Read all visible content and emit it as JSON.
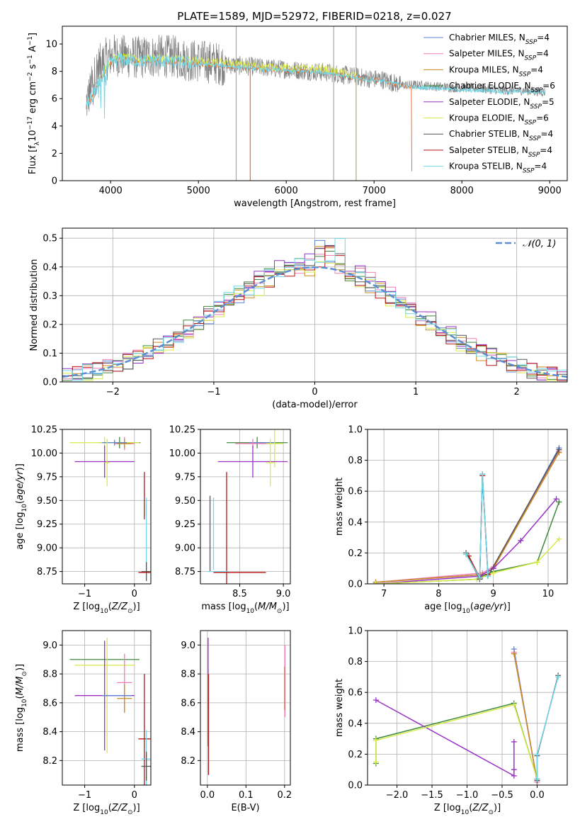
{
  "figure_title": "PLATE=1589, MJD=52972, FIBERID=0218, z=0.027",
  "colors": {
    "Chabrier MILES": "#5b83d6",
    "Salpeter MILES": "#ef7fb5",
    "Kroupa MILES": "#c98b1f",
    "Chabrier ELODIE": "#3f8a3f",
    "Salpeter ELODIE": "#9b30c7",
    "Kroupa ELODIE": "#d9ea4a",
    "Chabrier STELIB": "#555555",
    "Salpeter STELIB": "#b81414",
    "Kroupa STELIB": "#72d7e8",
    "orange_curve": "#e8733a",
    "gray_spectrum": "#808080",
    "normal_curve": "#5b8fd1",
    "grid": "#b0b0b0"
  },
  "chart_data": [
    {
      "id": "spectrum",
      "type": "line",
      "title": "PLATE=1589, MJD=52972, FIBERID=0218, z=0.027",
      "xlabel": "wavelength [Angstrom, rest frame]",
      "ylabel": "Flux [f_λ 10^-17 erg cm^-2 s^-1 A^-1]",
      "xlim": [
        3450,
        9200
      ],
      "ylim": [
        0,
        11.3
      ],
      "xticks": [
        4000,
        5000,
        6000,
        7000,
        8000,
        9000
      ],
      "yticks": [
        0,
        2,
        4,
        6,
        8,
        10
      ],
      "grid": false,
      "legend_position": "top-right",
      "legend": [
        {
          "base": "Chabrier MILES, N",
          "sub": "SSP",
          "tail": "=4"
        },
        {
          "base": "Salpeter MILES, N",
          "sub": "SSP",
          "tail": "=4"
        },
        {
          "base": "Kroupa MILES, N",
          "sub": "SSP",
          "tail": "=4"
        },
        {
          "base": "Chabrier ELODIE, N",
          "sub": "SSP",
          "tail": "=6"
        },
        {
          "base": "Salpeter ELODIE, N",
          "sub": "SSP",
          "tail": "=5"
        },
        {
          "base": "Kroupa ELODIE, N",
          "sub": "SSP",
          "tail": "=6"
        },
        {
          "base": "Chabrier STELIB, N",
          "sub": "SSP",
          "tail": "=4"
        },
        {
          "base": "Salpeter STELIB, N",
          "sub": "SSP",
          "tail": "=4"
        },
        {
          "base": "Kroupa STELIB, N",
          "sub": "SSP",
          "tail": "=4"
        }
      ],
      "data_gray_observed": {
        "x": [
          3720,
          3780,
          3850,
          3950,
          4050,
          4150,
          4300,
          4500,
          4700,
          4900,
          5100,
          5300,
          5500,
          5700,
          5900,
          6100,
          6300,
          6500,
          6700,
          6900,
          7100,
          7300,
          7500,
          7700,
          7900,
          8100,
          8300,
          8500,
          8700,
          8900
        ],
        "y": [
          5.6,
          6.8,
          8.3,
          8.9,
          9.2,
          9.1,
          9.0,
          9.1,
          9.1,
          8.8,
          8.7,
          8.5,
          8.4,
          8.3,
          8.2,
          8.1,
          8.0,
          7.9,
          7.7,
          7.5,
          7.4,
          7.0,
          7.0,
          6.9,
          6.8,
          6.8,
          6.7,
          6.6,
          6.6,
          6.5
        ]
      },
      "model_cyan": {
        "x": [
          3720,
          3800,
          3900,
          4000,
          4100,
          4200,
          4350,
          4500,
          4700,
          4900,
          5100,
          5300,
          5500,
          5700,
          5900,
          6100,
          6300,
          6500,
          6700,
          6900,
          7100,
          7300,
          7500,
          7700,
          7900,
          8100,
          8300,
          8500,
          8700,
          8900
        ],
        "y": [
          5.5,
          6.2,
          7.6,
          8.6,
          8.9,
          8.8,
          8.7,
          8.8,
          8.7,
          8.6,
          8.5,
          8.4,
          8.3,
          8.2,
          8.1,
          8.0,
          8.0,
          7.9,
          7.6,
          7.4,
          7.3,
          7.0,
          6.8,
          6.8,
          6.7,
          6.6,
          6.6,
          6.5,
          6.5,
          6.5
        ]
      }
    },
    {
      "id": "residuals",
      "type": "area",
      "xlabel": "(data-model)/error",
      "ylabel": "Normed distribution",
      "xlim": [
        -2.5,
        2.5
      ],
      "ylim": [
        0,
        0.535
      ],
      "xticks": [
        -2,
        -1,
        0,
        1,
        2
      ],
      "yticks": [
        0.0,
        0.1,
        0.2,
        0.3,
        0.4,
        0.5
      ],
      "grid": true,
      "legend_position": "top-right",
      "legend_label": "𝒩(0, 1)",
      "bin_width": 0.1,
      "series": [
        {
          "name": "Chabrier MILES",
          "offset": 0.0
        },
        {
          "name": "Salpeter MILES",
          "offset": 0.015
        },
        {
          "name": "Kroupa MILES",
          "offset": -0.012
        },
        {
          "name": "Chabrier ELODIE",
          "offset": 0.008
        },
        {
          "name": "Salpeter ELODIE",
          "offset": 0.025
        },
        {
          "name": "Kroupa ELODIE",
          "offset": -0.02
        },
        {
          "name": "Chabrier STELIB",
          "offset": 0.005
        },
        {
          "name": "Salpeter STELIB",
          "offset": -0.006
        },
        {
          "name": "Kroupa STELIB",
          "offset": 0.012
        }
      ]
    },
    {
      "id": "age_vs_Z",
      "type": "scatter",
      "xlabel": "Z [log10(Z/Z⊙)]",
      "ylabel": "age  [log10(age/yr)]",
      "xlim": [
        -1.45,
        0.33
      ],
      "ylim": [
        8.62,
        10.25
      ],
      "xticks": [
        -1,
        0
      ],
      "yticks": [
        8.75,
        9.0,
        9.25,
        9.5,
        9.75,
        10.0,
        10.25
      ],
      "grid": true,
      "points": [
        {
          "x": -0.3,
          "y": 10.11,
          "xerr": 0.42,
          "yerr": 0.06,
          "c": "#3f8a3f"
        },
        {
          "x": -0.6,
          "y": 10.11,
          "xerr": 0.7,
          "yerr": 0.06,
          "c": "#d9ea4a"
        },
        {
          "x": -0.2,
          "y": 10.1,
          "xerr": 0.2,
          "yerr": 0.07,
          "c": "#ef7fb5"
        },
        {
          "x": -0.2,
          "y": 10.1,
          "xerr": 0.15,
          "yerr": 0.05,
          "c": "#c98b1f"
        },
        {
          "x": -0.4,
          "y": 10.11,
          "xerr": 0.25,
          "yerr": 0.03,
          "c": "#5b83d6"
        },
        {
          "x": -0.6,
          "y": 9.91,
          "xerr": 0.6,
          "yerr": 0.17,
          "c": "#9b30c7"
        },
        {
          "x": -0.55,
          "y": 9.9,
          "xerr": 0.05,
          "yerr": 0.25,
          "c": "#d9ea4a"
        },
        {
          "x": 0.2,
          "y": 9.55,
          "xerr": 0.0,
          "yerr": 0.25,
          "c": "#b81414"
        },
        {
          "x": 0.24,
          "y": 9.15,
          "xerr": 0.0,
          "yerr": 0.38,
          "c": "#72d7e8"
        },
        {
          "x": 0.24,
          "y": 8.75,
          "xerr": 0.1,
          "yerr": 0.1,
          "c": "#555555"
        },
        {
          "x": 0.2,
          "y": 8.74,
          "xerr": 0.12,
          "yerr": 0.0,
          "c": "#b81414"
        }
      ]
    },
    {
      "id": "age_vs_mass",
      "type": "scatter",
      "xlabel": "mass [log10(M/M⊙)]",
      "ylabel": "",
      "xlim": [
        8.05,
        9.08
      ],
      "ylim": [
        8.62,
        10.25
      ],
      "xticks": [
        8.5,
        9.0
      ],
      "yticks": [
        8.75,
        9.0,
        9.25,
        9.5,
        9.75,
        10.0,
        10.25
      ],
      "grid": true,
      "points": [
        {
          "x": 8.7,
          "y": 10.11,
          "xerr": 0.35,
          "yerr": 0.06,
          "c": "#3f8a3f"
        },
        {
          "x": 8.75,
          "y": 10.11,
          "xerr": 0.15,
          "yerr": 0.0,
          "c": "#5b83d6"
        },
        {
          "x": 8.65,
          "y": 10.1,
          "xerr": 0.2,
          "yerr": 0.05,
          "c": "#ef7fb5"
        },
        {
          "x": 8.9,
          "y": 10.1,
          "xerr": 0.1,
          "yerr": 0.25,
          "c": "#d9ea4a"
        },
        {
          "x": 8.65,
          "y": 9.91,
          "xerr": 0.4,
          "yerr": 0.17,
          "c": "#9b30c7"
        },
        {
          "x": 8.85,
          "y": 9.9,
          "xerr": 0.05,
          "yerr": 0.25,
          "c": "#d9ea4a"
        },
        {
          "x": 8.35,
          "y": 9.0,
          "xerr": 0.0,
          "yerr": 0.8,
          "c": "#b81414"
        },
        {
          "x": 8.2,
          "y": 9.15,
          "xerr": 0.0,
          "yerr": 0.38,
          "c": "#72d7e8"
        },
        {
          "x": 8.16,
          "y": 9.15,
          "xerr": 0.0,
          "yerr": 0.4,
          "c": "#555555"
        },
        {
          "x": 8.25,
          "y": 8.75,
          "xerr": 0.12,
          "yerr": 0.0,
          "c": "#72d7e8"
        },
        {
          "x": 8.5,
          "y": 8.74,
          "xerr": 0.3,
          "yerr": 0.0,
          "c": "#b81414"
        }
      ]
    },
    {
      "id": "massweight_vs_age",
      "type": "line",
      "xlabel": "age  [log10(age/yr)]",
      "ylabel": "mass weight",
      "xlim": [
        6.7,
        10.35
      ],
      "ylim": [
        0,
        1.0
      ],
      "xticks": [
        7,
        8,
        9,
        10
      ],
      "yticks": [
        0.0,
        0.2,
        0.4,
        0.6,
        0.8,
        1.0
      ],
      "grid": true,
      "series": [
        {
          "name": "Chabrier MILES",
          "x": [
            6.85,
            8.8,
            9.0,
            10.2
          ],
          "y": [
            0.01,
            0.06,
            0.1,
            0.88
          ]
        },
        {
          "name": "Salpeter MILES",
          "x": [
            6.85,
            8.8,
            9.0,
            10.2
          ],
          "y": [
            0.01,
            0.07,
            0.11,
            0.86
          ]
        },
        {
          "name": "Kroupa MILES",
          "x": [
            6.85,
            8.8,
            9.0,
            10.2
          ],
          "y": [
            0.01,
            0.06,
            0.1,
            0.85
          ]
        },
        {
          "name": "Chabrier ELODIE",
          "x": [
            6.85,
            8.7,
            8.8,
            9.0,
            9.8,
            10.2
          ],
          "y": [
            0.0,
            0.03,
            0.05,
            0.08,
            0.14,
            0.53
          ]
        },
        {
          "name": "Salpeter ELODIE",
          "x": [
            6.85,
            8.75,
            9.0,
            9.5,
            10.15
          ],
          "y": [
            0.0,
            0.05,
            0.1,
            0.28,
            0.55
          ]
        },
        {
          "name": "Kroupa ELODIE",
          "x": [
            6.85,
            8.7,
            9.0,
            9.8,
            10.2
          ],
          "y": [
            0.0,
            0.03,
            0.07,
            0.14,
            0.29
          ]
        },
        {
          "name": "Chabrier STELIB",
          "x": [
            8.5,
            8.75,
            8.8,
            8.9,
            10.2
          ],
          "y": [
            0.2,
            0.03,
            0.71,
            0.05,
            0.87
          ]
        },
        {
          "name": "Salpeter STELIB",
          "x": [
            8.55,
            8.75,
            8.8,
            8.9
          ],
          "y": [
            0.18,
            0.04,
            0.7,
            0.06
          ]
        },
        {
          "name": "Kroupa STELIB",
          "x": [
            8.5,
            8.75,
            8.8,
            8.9
          ],
          "y": [
            0.19,
            0.04,
            0.71,
            0.05
          ]
        }
      ]
    },
    {
      "id": "mass_vs_Z",
      "type": "scatter",
      "xlabel": "Z [log10(Z/Z⊙)]",
      "ylabel": "mass [log10(M/M⊙)]",
      "xlim": [
        -1.45,
        0.33
      ],
      "ylim": [
        8.03,
        9.1
      ],
      "xticks": [
        -1,
        0
      ],
      "yticks": [
        8.2,
        8.4,
        8.6,
        8.8,
        9.0
      ],
      "grid": true,
      "points": [
        {
          "x": -0.6,
          "y": 8.9,
          "xerr": 0.7,
          "yerr": 0.0,
          "c": "#3f8a3f"
        },
        {
          "x": -0.6,
          "y": 8.86,
          "xerr": 0.6,
          "yerr": 0.0,
          "c": "#d9ea4a"
        },
        {
          "x": -0.55,
          "y": 8.65,
          "xerr": 0.05,
          "yerr": 0.4,
          "c": "#d9ea4a"
        },
        {
          "x": -0.6,
          "y": 8.65,
          "xerr": 0.6,
          "yerr": 0.38,
          "c": "#9b30c7"
        },
        {
          "x": -0.2,
          "y": 8.74,
          "xerr": 0.15,
          "yerr": 0.2,
          "c": "#ef7fb5"
        },
        {
          "x": -0.2,
          "y": 8.63,
          "xerr": 0.15,
          "yerr": 0.1,
          "c": "#c98b1f"
        },
        {
          "x": -0.35,
          "y": 8.65,
          "xerr": 0.3,
          "yerr": 0.0,
          "c": "#5b83d6"
        },
        {
          "x": 0.2,
          "y": 8.35,
          "xerr": 0.12,
          "yerr": 0.45,
          "c": "#b81414"
        },
        {
          "x": 0.24,
          "y": 8.21,
          "xerr": 0.1,
          "yerr": 0.2,
          "c": "#72d7e8"
        },
        {
          "x": 0.24,
          "y": 8.16,
          "xerr": 0.1,
          "yerr": 0.1,
          "c": "#555555"
        }
      ]
    },
    {
      "id": "mass_vs_EBV",
      "type": "scatter",
      "xlabel": "E(B-V)",
      "ylabel": "",
      "xlim": [
        -0.018,
        0.215
      ],
      "ylim": [
        8.03,
        9.1
      ],
      "xticks": [
        0.0,
        0.1,
        0.2
      ],
      "yticks": [
        8.2,
        8.4,
        8.6,
        8.8,
        9.0
      ],
      "grid": true,
      "points": [
        {
          "x": 0.002,
          "y": 8.75,
          "xerr": 0.0,
          "yerr": 0.3,
          "c": "#d9ea4a"
        },
        {
          "x": 0.002,
          "y": 8.6,
          "xerr": 0.0,
          "yerr": 0.45,
          "c": "#9b30c7"
        },
        {
          "x": 0.003,
          "y": 8.45,
          "xerr": 0.0,
          "yerr": 0.35,
          "c": "#b81414"
        },
        {
          "x": 0.001,
          "y": 8.2,
          "xerr": 0.0,
          "yerr": 0.1,
          "c": "#72d7e8"
        },
        {
          "x": 0.201,
          "y": 8.75,
          "xerr": 0.0,
          "yerr": 0.25,
          "c": "#ef7fb5"
        },
        {
          "x": 0.2,
          "y": 8.7,
          "xerr": 0.0,
          "yerr": 0.15,
          "c": "#e8733a"
        }
      ]
    },
    {
      "id": "massweight_vs_Z",
      "type": "line",
      "xlabel": "Z [log10(Z/Z⊙)]",
      "ylabel": "mass weight",
      "xlim": [
        -2.42,
        0.43
      ],
      "ylim": [
        0,
        1.0
      ],
      "xticks": [
        -2.0,
        -1.5,
        -1.0,
        -0.5,
        0.0
      ],
      "yticks": [
        0.0,
        0.2,
        0.4,
        0.6,
        0.8,
        1.0
      ],
      "grid": true,
      "series": [
        {
          "name": "Chabrier MILES",
          "x": [
            -0.33,
            0.0
          ],
          "y": [
            0.88,
            0.02
          ]
        },
        {
          "name": "Salpeter MILES",
          "x": [
            -0.33,
            0.0
          ],
          "y": [
            0.86,
            0.02
          ]
        },
        {
          "name": "Kroupa MILES",
          "x": [
            -0.33,
            0.0
          ],
          "y": [
            0.85,
            0.03
          ]
        },
        {
          "name": "Chabrier ELODIE",
          "x": [
            -2.3,
            -2.3,
            -0.33,
            0.0
          ],
          "y": [
            0.14,
            0.3,
            0.53,
            0.04
          ]
        },
        {
          "name": "Salpeter ELODIE",
          "x": [
            -2.3,
            -0.33,
            -0.33,
            -0.33
          ],
          "y": [
            0.55,
            0.06,
            0.28,
            0.1
          ]
        },
        {
          "name": "Kroupa ELODIE",
          "x": [
            -2.3,
            -2.3,
            -0.33,
            0.0
          ],
          "y": [
            0.15,
            0.29,
            0.52,
            0.04
          ]
        },
        {
          "name": "Chabrier STELIB",
          "x": [
            0.0,
            0.0,
            0.3
          ],
          "y": [
            0.03,
            0.19,
            0.71
          ]
        },
        {
          "name": "Kroupa STELIB",
          "x": [
            0.0,
            0.0,
            0.3
          ],
          "y": [
            0.04,
            0.2,
            0.7
          ]
        }
      ]
    }
  ]
}
